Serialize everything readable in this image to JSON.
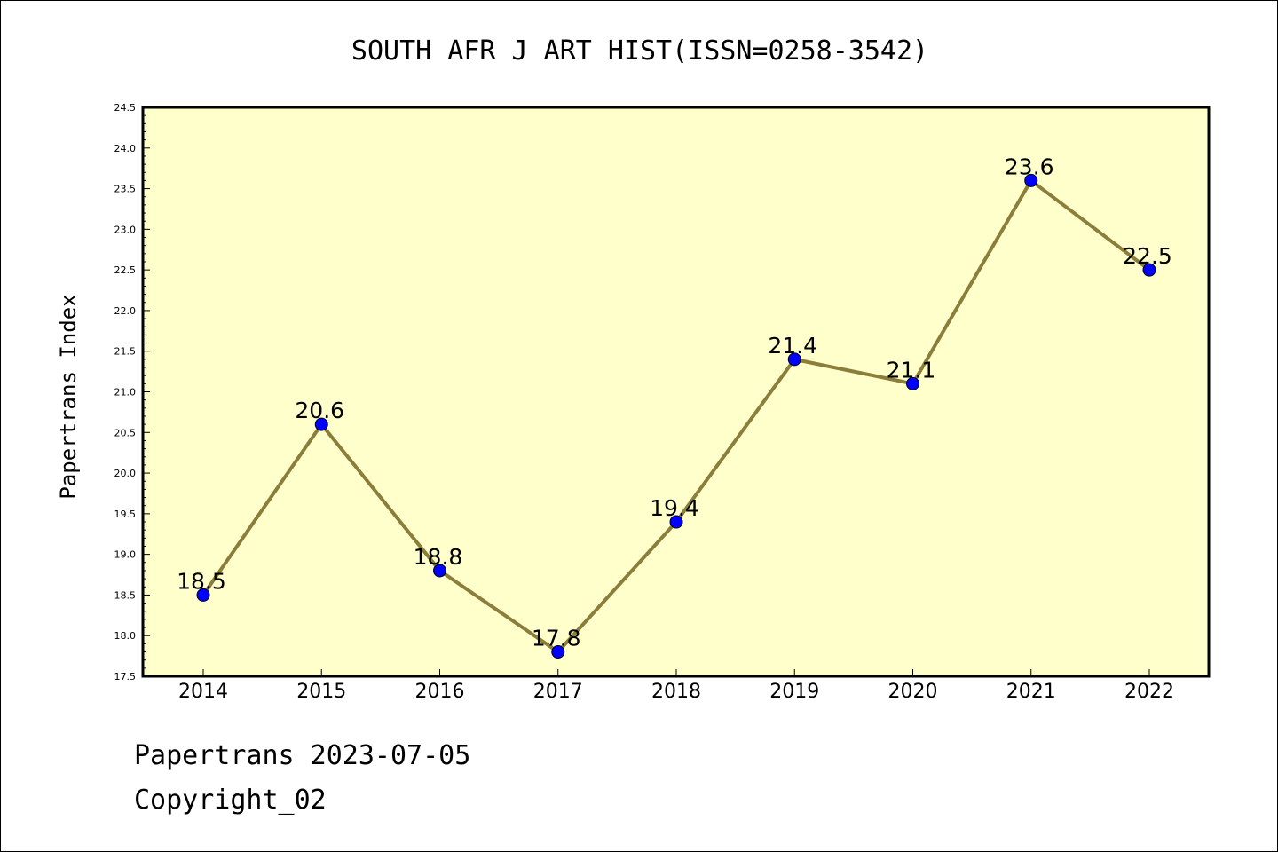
{
  "chart_data": {
    "type": "line",
    "title": "SOUTH AFR J ART HIST(ISSN=0258-3542)",
    "xlabel": "",
    "ylabel": "Papertrans Index",
    "categories": [
      "2014",
      "2015",
      "2016",
      "2017",
      "2018",
      "2019",
      "2020",
      "2021",
      "2022"
    ],
    "series": [
      {
        "values": [
          18.5,
          20.6,
          18.8,
          17.8,
          19.4,
          21.4,
          21.1,
          23.6,
          22.5
        ]
      }
    ],
    "data_labels": [
      "18.5",
      "20.6",
      "18.8",
      "17.8",
      "19.4",
      "21.4",
      "21.1",
      "23.6",
      "22.5"
    ],
    "ylim": [
      17.5,
      24.5
    ],
    "yticks": [
      "17.5",
      "18.0",
      "18.5",
      "19.0",
      "19.5",
      "20.0",
      "20.5",
      "21.0",
      "21.5",
      "22.0",
      "22.5",
      "23.0",
      "23.5",
      "24.0",
      "24.5"
    ],
    "grid": false,
    "colors": {
      "plot_background": "#ffffcc",
      "line": "#8b7d3a",
      "marker": "#0000ff",
      "axes": "#000000"
    }
  },
  "footer": {
    "date_line": "Papertrans 2023-07-05",
    "copyright_line": "Copyright_02"
  }
}
